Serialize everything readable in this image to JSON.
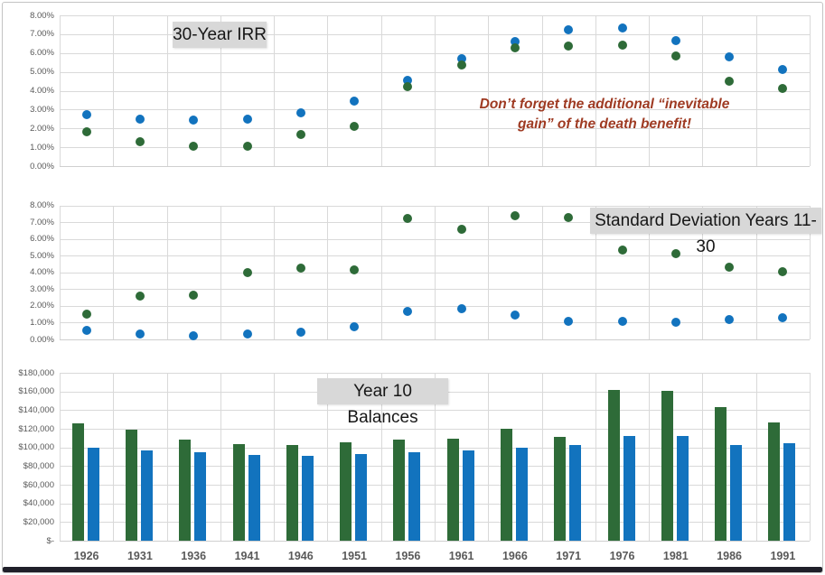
{
  "panel": {
    "background": "#ffffff",
    "border_color": "#c3c3c3",
    "bottom_bar_color": "#20202a",
    "title_box_bg": "#d8d8d8",
    "gridline_color": "#d9d9d9",
    "axis_label_color": "#595959"
  },
  "series_colors": {
    "green": "#2e6b38",
    "blue": "#1273be"
  },
  "annotation": {
    "text": "Don’t forget the additional “inevitable gain” of the death benefit!",
    "color": "#9e3a22"
  },
  "categories": [
    "1926",
    "1931",
    "1936",
    "1941",
    "1946",
    "1951",
    "1956",
    "1961",
    "1966",
    "1971",
    "1976",
    "1981",
    "1986",
    "1991"
  ],
  "chart_data": [
    {
      "type": "scatter",
      "title": "30-Year IRR",
      "categories": [
        "1926",
        "1931",
        "1936",
        "1941",
        "1946",
        "1951",
        "1956",
        "1961",
        "1966",
        "1971",
        "1976",
        "1981",
        "1986",
        "1991"
      ],
      "y_ticks": [
        "8.00%",
        "7.00%",
        "6.00%",
        "5.00%",
        "4.00%",
        "3.00%",
        "2.00%",
        "1.00%",
        "0.00%"
      ],
      "ylim": [
        0,
        8
      ],
      "grid": true,
      "legend": "none",
      "series": [
        {
          "name": "blue",
          "color": "#1273be",
          "values": [
            2.75,
            2.5,
            2.45,
            2.5,
            2.85,
            3.45,
            4.55,
            5.7,
            6.6,
            7.25,
            7.35,
            6.65,
            5.8,
            5.15
          ]
        },
        {
          "name": "green",
          "color": "#2e6b38",
          "values": [
            1.8,
            1.3,
            1.05,
            1.05,
            1.7,
            2.1,
            4.2,
            5.35,
            6.3,
            6.35,
            6.4,
            5.85,
            4.5,
            4.1
          ]
        }
      ]
    },
    {
      "type": "scatter",
      "title": "Standard Deviation Years 11-30",
      "categories": [
        "1926",
        "1931",
        "1936",
        "1941",
        "1946",
        "1951",
        "1956",
        "1961",
        "1966",
        "1971",
        "1976",
        "1981",
        "1986",
        "1991"
      ],
      "y_ticks": [
        "8.00%",
        "7.00%",
        "6.00%",
        "5.00%",
        "4.00%",
        "3.00%",
        "2.00%",
        "1.00%",
        "0.00%"
      ],
      "ylim": [
        0,
        8
      ],
      "grid": true,
      "legend": "none",
      "series": [
        {
          "name": "green",
          "color": "#2e6b38",
          "values": [
            1.5,
            2.6,
            2.65,
            4.0,
            4.25,
            4.15,
            7.2,
            6.6,
            7.4,
            7.3,
            5.35,
            5.1,
            4.3,
            4.05
          ]
        },
        {
          "name": "blue",
          "color": "#1273be",
          "values": [
            0.55,
            0.3,
            0.2,
            0.3,
            0.45,
            0.75,
            1.65,
            1.85,
            1.45,
            1.1,
            1.1,
            1.0,
            1.2,
            1.3
          ]
        }
      ]
    },
    {
      "type": "bar",
      "title": "Year 10 Balances",
      "categories": [
        "1926",
        "1931",
        "1936",
        "1941",
        "1946",
        "1951",
        "1956",
        "1961",
        "1966",
        "1971",
        "1976",
        "1981",
        "1986",
        "1991"
      ],
      "y_ticks": [
        "$180,000",
        "$160,000",
        "$140,000",
        "$120,000",
        "$100,000",
        "$80,000",
        "$60,000",
        "$40,000",
        "$20,000",
        "$-"
      ],
      "ylim": [
        0,
        180000
      ],
      "grid": true,
      "legend": "none",
      "series": [
        {
          "name": "green",
          "color": "#2e6b38",
          "values": [
            126000,
            119000,
            108500,
            103500,
            103000,
            106000,
            108500,
            109000,
            120000,
            111000,
            162000,
            161000,
            143500,
            127000
          ]
        },
        {
          "name": "blue",
          "color": "#1273be",
          "values": [
            100000,
            97000,
            95000,
            92000,
            91000,
            92500,
            95000,
            97000,
            100000,
            103000,
            112000,
            112000,
            103000,
            105000
          ]
        }
      ]
    }
  ]
}
